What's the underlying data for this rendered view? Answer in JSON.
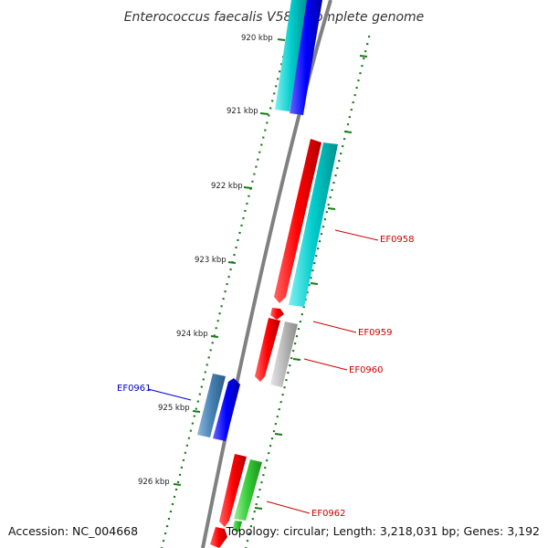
{
  "title": "Enterococcus faecalis V583, complete genome",
  "footer": {
    "accession": "Accession: NC_004668",
    "summary": "Topology: circular; Length: 3,218,031 bp; Genes: 3,192"
  },
  "ticks": [
    {
      "label": "920 kbp"
    },
    {
      "label": "921 kbp"
    },
    {
      "label": "922 kbp"
    },
    {
      "label": "923 kbp"
    },
    {
      "label": "924 kbp"
    },
    {
      "label": "925 kbp"
    },
    {
      "label": "926 kbp"
    }
  ],
  "colors": {
    "forward_cds": "#ff0000",
    "reverse_cds": "#0000ff",
    "cyan_feature": "#00c8c8",
    "gray_feature": "#b4b4b4",
    "green_feature": "#33cc33",
    "steel_feature": "#4682b4",
    "backbone": "#808080",
    "tick": "#1a7a1a",
    "label_red": "#cc0000",
    "label_blue": "#0000cc"
  },
  "gene_labels": [
    {
      "id": "ef0958",
      "text": "EF0958",
      "color": "#cc0000"
    },
    {
      "id": "ef0959",
      "text": "EF0959",
      "color": "#cc0000"
    },
    {
      "id": "ef0960",
      "text": "EF0960",
      "color": "#cc0000"
    },
    {
      "id": "ef0961",
      "text": "EF0961",
      "color": "#0000cc"
    },
    {
      "id": "ef0962",
      "text": "EF0962",
      "color": "#cc0000"
    }
  ]
}
